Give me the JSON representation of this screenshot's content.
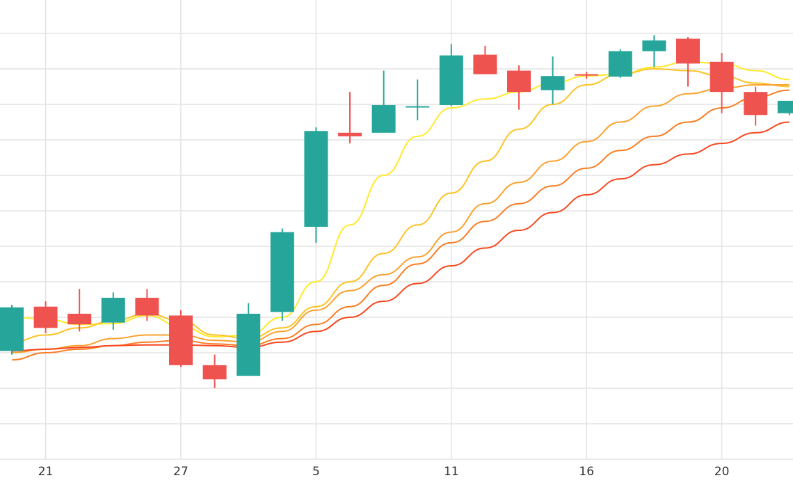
{
  "chart_data": {
    "type": "candlestick",
    "title": "",
    "xlabel": "",
    "ylabel": "",
    "grid": true,
    "legend": "none",
    "ylim": [
      0,
      13
    ],
    "x_tick_labels": [
      {
        "index": 1,
        "label": "21"
      },
      {
        "index": 5,
        "label": "27"
      },
      {
        "index": 9,
        "label": "5"
      },
      {
        "index": 13,
        "label": "11"
      },
      {
        "index": 17,
        "label": "16"
      },
      {
        "index": 21,
        "label": "20"
      }
    ],
    "candles": [
      {
        "index": 0,
        "open": 3.05,
        "high": 4.35,
        "low": 2.95,
        "close": 4.28
      },
      {
        "index": 1,
        "open": 4.3,
        "high": 4.45,
        "low": 3.55,
        "close": 3.7
      },
      {
        "index": 2,
        "open": 4.1,
        "high": 4.8,
        "low": 3.6,
        "close": 3.8
      },
      {
        "index": 3,
        "open": 3.85,
        "high": 4.7,
        "low": 3.65,
        "close": 4.55
      },
      {
        "index": 4,
        "open": 4.55,
        "high": 4.8,
        "low": 3.9,
        "close": 4.05
      },
      {
        "index": 5,
        "open": 4.05,
        "high": 4.2,
        "low": 2.6,
        "close": 2.65
      },
      {
        "index": 6,
        "open": 2.65,
        "high": 2.95,
        "low": 2.0,
        "close": 2.25
      },
      {
        "index": 7,
        "open": 2.35,
        "high": 4.4,
        "low": 2.35,
        "close": 4.1
      },
      {
        "index": 8,
        "open": 4.15,
        "high": 6.5,
        "low": 3.9,
        "close": 6.4
      },
      {
        "index": 9,
        "open": 6.55,
        "high": 9.35,
        "low": 6.1,
        "close": 9.25
      },
      {
        "index": 10,
        "open": 9.2,
        "high": 10.35,
        "low": 8.9,
        "close": 9.1
      },
      {
        "index": 11,
        "open": 9.2,
        "high": 10.95,
        "low": 9.2,
        "close": 9.98
      },
      {
        "index": 12,
        "open": 9.95,
        "high": 10.7,
        "low": 9.55,
        "close": 9.95
      },
      {
        "index": 13,
        "open": 9.98,
        "high": 11.7,
        "low": 9.95,
        "close": 11.38
      },
      {
        "index": 14,
        "open": 11.4,
        "high": 11.65,
        "low": 10.9,
        "close": 10.85
      },
      {
        "index": 15,
        "open": 10.95,
        "high": 11.1,
        "low": 9.85,
        "close": 10.35
      },
      {
        "index": 16,
        "open": 10.4,
        "high": 11.35,
        "low": 10.0,
        "close": 10.8
      },
      {
        "index": 17,
        "open": 10.85,
        "high": 10.92,
        "low": 10.72,
        "close": 10.82
      },
      {
        "index": 18,
        "open": 10.78,
        "high": 11.55,
        "low": 10.75,
        "close": 11.5
      },
      {
        "index": 19,
        "open": 11.5,
        "high": 11.95,
        "low": 11.05,
        "close": 11.8
      },
      {
        "index": 20,
        "open": 11.85,
        "high": 11.9,
        "low": 10.5,
        "close": 11.15
      },
      {
        "index": 21,
        "open": 11.2,
        "high": 11.45,
        "low": 9.75,
        "close": 10.35
      },
      {
        "index": 22,
        "open": 10.35,
        "high": 10.5,
        "low": 9.4,
        "close": 9.7
      },
      {
        "index": 23,
        "open": 9.75,
        "high": 10.1,
        "low": 9.7,
        "close": 10.1
      }
    ],
    "series": [
      {
        "color": "#ffea2a",
        "points": [
          [
            0,
            4.0
          ],
          [
            1,
            3.95
          ],
          [
            2,
            3.8
          ],
          [
            3,
            3.82
          ],
          [
            4,
            4.05
          ],
          [
            5,
            3.75
          ],
          [
            6,
            3.45
          ],
          [
            7,
            3.5
          ],
          [
            8,
            4.0
          ],
          [
            9,
            5.0
          ],
          [
            10,
            6.6
          ],
          [
            11,
            8.0
          ],
          [
            12,
            9.1
          ],
          [
            13,
            9.9
          ],
          [
            14,
            10.15
          ],
          [
            15,
            10.35
          ],
          [
            16,
            10.6
          ],
          [
            17,
            10.8
          ],
          [
            18,
            10.85
          ],
          [
            19,
            11.05
          ],
          [
            20,
            11.2
          ],
          [
            21,
            11.15
          ],
          [
            22,
            10.95
          ],
          [
            23,
            10.7
          ]
        ]
      },
      {
        "color": "#fcc324",
        "points": [
          [
            0,
            3.3
          ],
          [
            1,
            3.5
          ],
          [
            2,
            3.7
          ],
          [
            3,
            3.9
          ],
          [
            4,
            4.1
          ],
          [
            5,
            3.9
          ],
          [
            6,
            3.5
          ],
          [
            7,
            3.4
          ],
          [
            8,
            3.7
          ],
          [
            9,
            4.3
          ],
          [
            10,
            5.0
          ],
          [
            11,
            5.8
          ],
          [
            12,
            6.6
          ],
          [
            13,
            7.5
          ],
          [
            14,
            8.4
          ],
          [
            15,
            9.3
          ],
          [
            16,
            10.0
          ],
          [
            17,
            10.55
          ],
          [
            18,
            10.85
          ],
          [
            19,
            11.0
          ],
          [
            20,
            10.95
          ],
          [
            21,
            10.8
          ],
          [
            22,
            10.6
          ],
          [
            23,
            10.5
          ]
        ]
      },
      {
        "color": "#fba12d",
        "points": [
          [
            0,
            3.0
          ],
          [
            1,
            3.1
          ],
          [
            2,
            3.2
          ],
          [
            3,
            3.4
          ],
          [
            4,
            3.5
          ],
          [
            5,
            3.5
          ],
          [
            6,
            3.35
          ],
          [
            7,
            3.3
          ],
          [
            8,
            3.6
          ],
          [
            9,
            4.2
          ],
          [
            10,
            4.75
          ],
          [
            11,
            5.2
          ],
          [
            12,
            5.7
          ],
          [
            13,
            6.4
          ],
          [
            14,
            7.2
          ],
          [
            15,
            7.8
          ],
          [
            16,
            8.4
          ],
          [
            17,
            8.95
          ],
          [
            18,
            9.5
          ],
          [
            19,
            9.95
          ],
          [
            20,
            10.3
          ],
          [
            21,
            10.45
          ],
          [
            22,
            10.55
          ],
          [
            23,
            10.55
          ]
        ]
      },
      {
        "color": "#f97c22",
        "points": [
          [
            0,
            2.8
          ],
          [
            1,
            3.0
          ],
          [
            2,
            3.1
          ],
          [
            3,
            3.2
          ],
          [
            4,
            3.3
          ],
          [
            5,
            3.35
          ],
          [
            6,
            3.25
          ],
          [
            7,
            3.2
          ],
          [
            8,
            3.4
          ],
          [
            9,
            3.8
          ],
          [
            10,
            4.3
          ],
          [
            11,
            4.9
          ],
          [
            12,
            5.5
          ],
          [
            13,
            6.1
          ],
          [
            14,
            6.7
          ],
          [
            15,
            7.2
          ],
          [
            16,
            7.7
          ],
          [
            17,
            8.2
          ],
          [
            18,
            8.7
          ],
          [
            19,
            9.1
          ],
          [
            20,
            9.5
          ],
          [
            21,
            9.9
          ],
          [
            22,
            10.2
          ],
          [
            23,
            10.4
          ]
        ]
      },
      {
        "color": "#f7471f",
        "points": [
          [
            0,
            3.05
          ],
          [
            1,
            3.1
          ],
          [
            2,
            3.15
          ],
          [
            3,
            3.2
          ],
          [
            4,
            3.22
          ],
          [
            5,
            3.22
          ],
          [
            6,
            3.2
          ],
          [
            7,
            3.15
          ],
          [
            8,
            3.3
          ],
          [
            9,
            3.6
          ],
          [
            10,
            4.0
          ],
          [
            11,
            4.45
          ],
          [
            12,
            4.95
          ],
          [
            13,
            5.45
          ],
          [
            14,
            5.95
          ],
          [
            15,
            6.45
          ],
          [
            16,
            6.95
          ],
          [
            17,
            7.45
          ],
          [
            18,
            7.9
          ],
          [
            19,
            8.3
          ],
          [
            20,
            8.6
          ],
          [
            21,
            8.9
          ],
          [
            22,
            9.2
          ],
          [
            23,
            9.5
          ]
        ]
      }
    ],
    "colors": {
      "up": "#26a69a",
      "down": "#ef5350",
      "grid": "#e3e3e3",
      "background": "#ffffff"
    }
  }
}
